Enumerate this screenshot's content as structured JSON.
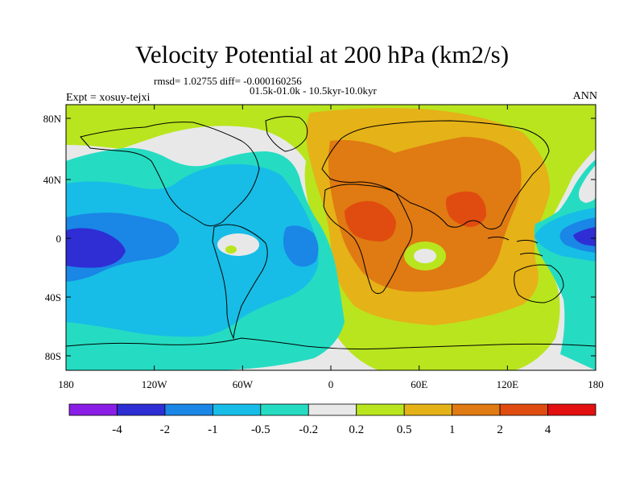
{
  "title": "Velocity Potential at 200 hPa (km2/s)",
  "stats_line1": "rmsd= 1.02755 diff= -0.000160256",
  "stats_line2": "01.5k-01.0k - 10.5kyr-10.0kyr",
  "experiment_label": "Expt = xosuy-tejxi",
  "season": "ANN",
  "lat_ticks": [
    "80N",
    "40N",
    "0",
    "40S",
    "80S"
  ],
  "lon_ticks": [
    "180",
    "120W",
    "60W",
    "0",
    "60E",
    "120E",
    "180"
  ],
  "colorbar": {
    "labels": [
      "-4",
      "-2",
      "-1",
      "-0.5",
      "-0.2",
      "0.2",
      "0.5",
      "1",
      "2",
      "4"
    ],
    "colors": [
      "#8a1ee6",
      "#2e2ed4",
      "#1a86e6",
      "#17bde6",
      "#25dcc2",
      "#e8e8e8",
      "#b9e51e",
      "#e5b218",
      "#e07a12",
      "#e04c10",
      "#e21010"
    ]
  },
  "region_colors": {
    "neg_strong": "#2e2ed4",
    "neg_mid": "#1a86e6",
    "neg_weak": "#17bde6",
    "neg_faint": "#25dcc2",
    "neutral": "#e8e8e8",
    "pos_faint": "#b9e51e",
    "pos_weak": "#e5b218",
    "pos_mid": "#e07a12",
    "pos_strong": "#e04c10",
    "coast": "#000000"
  }
}
